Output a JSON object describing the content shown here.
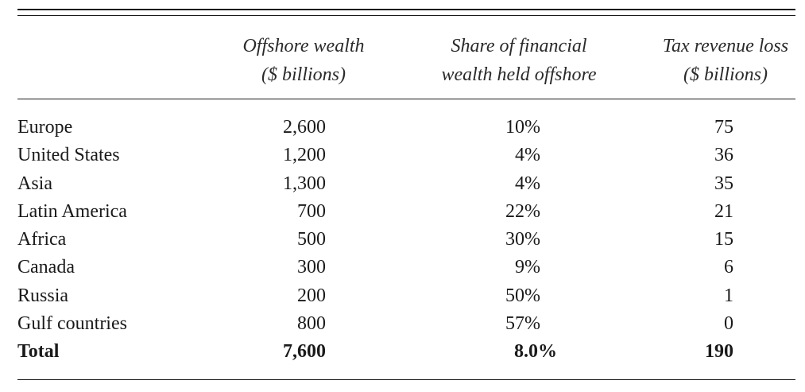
{
  "table": {
    "headers": {
      "wealth": [
        "Offshore wealth",
        "($ billions)"
      ],
      "share": [
        "Share of financial",
        "wealth held offshore"
      ],
      "tax": [
        "Tax revenue loss",
        "($ billions)"
      ]
    },
    "rows": [
      {
        "region": "Europe",
        "wealth": "2,600",
        "share": "10%",
        "tax": "75"
      },
      {
        "region": "United States",
        "wealth": "1,200",
        "share": "4%",
        "tax": "36"
      },
      {
        "region": "Asia",
        "wealth": "1,300",
        "share": "4%",
        "tax": "35"
      },
      {
        "region": "Latin America",
        "wealth": "700",
        "share": "22%",
        "tax": "21"
      },
      {
        "region": "Africa",
        "wealth": "500",
        "share": "30%",
        "tax": "15"
      },
      {
        "region": "Canada",
        "wealth": "300",
        "share": "9%",
        "tax": "6"
      },
      {
        "region": "Russia",
        "wealth": "200",
        "share": "50%",
        "tax": "1"
      },
      {
        "region": "Gulf countries",
        "wealth": "800",
        "share": "57%",
        "tax": "0"
      }
    ],
    "total": {
      "region": "Total",
      "wealth": "7,600",
      "share": "8.0%",
      "tax": "190"
    }
  }
}
